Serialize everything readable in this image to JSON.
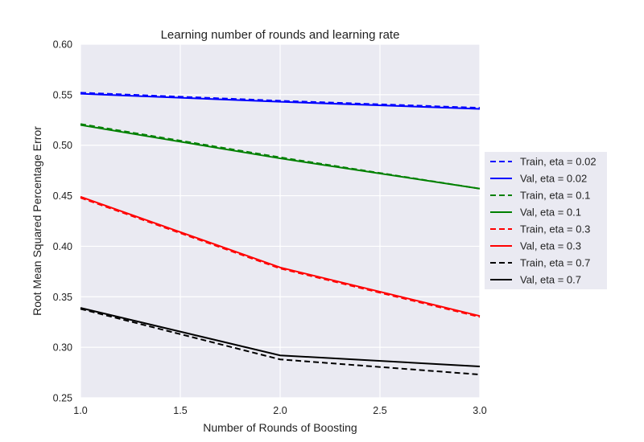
{
  "chart_data": {
    "type": "line",
    "title": "Learning number of rounds and learning rate",
    "xlabel": "Number of Rounds of Boosting",
    "ylabel": "Root Mean Squared Percentage Error",
    "xlim": [
      1.0,
      3.0
    ],
    "ylim": [
      0.25,
      0.6
    ],
    "xticks": [
      "1.0",
      "1.5",
      "2.0",
      "2.5",
      "3.0"
    ],
    "yticks": [
      "0.25",
      "0.30",
      "0.35",
      "0.40",
      "0.45",
      "0.50",
      "0.55",
      "0.60"
    ],
    "grid": true,
    "legend_position": "right, outside plot",
    "x": [
      1,
      2,
      3
    ],
    "series": [
      {
        "name": "Train, eta = 0.02",
        "values": [
          0.552,
          0.544,
          0.537
        ],
        "color": "#0000ff",
        "dash": "dashed"
      },
      {
        "name": "Val, eta = 0.02",
        "values": [
          0.551,
          0.543,
          0.536
        ],
        "color": "#0000ff",
        "dash": "solid"
      },
      {
        "name": "Train, eta = 0.1",
        "values": [
          0.521,
          0.488,
          0.457
        ],
        "color": "#008000",
        "dash": "dashed"
      },
      {
        "name": "Val, eta = 0.1",
        "values": [
          0.52,
          0.487,
          0.457
        ],
        "color": "#008000",
        "dash": "solid"
      },
      {
        "name": "Train, eta = 0.3",
        "values": [
          0.448,
          0.378,
          0.33
        ],
        "color": "#ff0000",
        "dash": "dashed"
      },
      {
        "name": "Val, eta = 0.3",
        "values": [
          0.449,
          0.379,
          0.331
        ],
        "color": "#ff0000",
        "dash": "solid"
      },
      {
        "name": "Train, eta = 0.7",
        "values": [
          0.338,
          0.288,
          0.273
        ],
        "color": "#000000",
        "dash": "dashed"
      },
      {
        "name": "Val, eta = 0.7",
        "values": [
          0.339,
          0.292,
          0.281
        ],
        "color": "#000000",
        "dash": "solid"
      }
    ]
  }
}
